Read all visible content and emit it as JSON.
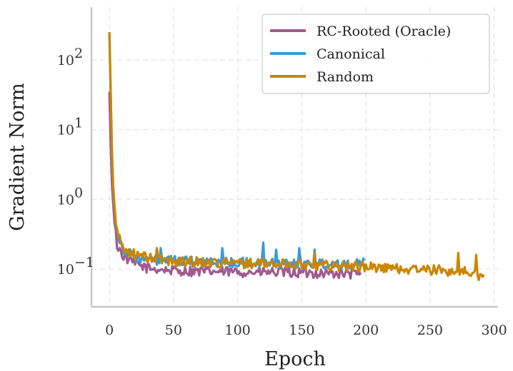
{
  "chart_data": {
    "type": "line",
    "title": "",
    "xlabel": "Epoch",
    "ylabel": "Gradient Norm",
    "yscale": "log",
    "xlim": [
      -14,
      303
    ],
    "ylim": [
      0.0288,
      570
    ],
    "xticks": [
      0,
      50,
      100,
      150,
      200,
      250,
      300
    ],
    "yticks": [
      {
        "value": 0.1,
        "base": "10",
        "exp": "−1"
      },
      {
        "value": 1,
        "base": "10",
        "exp": "0"
      },
      {
        "value": 10,
        "base": "10",
        "exp": "1"
      },
      {
        "value": 100,
        "base": "10",
        "exp": "2"
      }
    ],
    "grid": true,
    "legend_position": "top-right",
    "series": [
      {
        "name": "RC-Rooted (Oracle)",
        "color": "#a05a8f",
        "epochs": 196,
        "anchors": [
          [
            0,
            35
          ],
          [
            1,
            6
          ],
          [
            2,
            1.6
          ],
          [
            4,
            0.45
          ],
          [
            6,
            0.22
          ],
          [
            10,
            0.16
          ],
          [
            15,
            0.135
          ],
          [
            20,
            0.12
          ],
          [
            30,
            0.103
          ],
          [
            50,
            0.095
          ],
          [
            80,
            0.092
          ],
          [
            120,
            0.09
          ],
          [
            160,
            0.088
          ],
          [
            196,
            0.085
          ]
        ]
      },
      {
        "name": "Canonical",
        "color": "#3a9ad9",
        "epochs": 199,
        "anchors": [
          [
            0,
            240
          ],
          [
            1,
            35
          ],
          [
            2,
            4
          ],
          [
            3,
            1.2
          ],
          [
            5,
            0.45
          ],
          [
            8,
            0.25
          ],
          [
            12,
            0.18
          ],
          [
            20,
            0.15
          ],
          [
            30,
            0.135
          ],
          [
            50,
            0.13
          ],
          [
            80,
            0.125
          ],
          [
            120,
            0.122
          ],
          [
            160,
            0.12
          ],
          [
            199,
            0.12
          ]
        ],
        "spikes": [
          [
            40,
            0.2
          ],
          [
            88,
            0.2
          ],
          [
            120,
            0.24
          ],
          [
            130,
            0.19
          ],
          [
            148,
            0.2
          ],
          [
            160,
            0.19
          ]
        ]
      },
      {
        "name": "Random",
        "color": "#cc8500",
        "epochs": 292,
        "anchors": [
          [
            0,
            250
          ],
          [
            1,
            35
          ],
          [
            2,
            5
          ],
          [
            3,
            1.5
          ],
          [
            5,
            0.45
          ],
          [
            8,
            0.26
          ],
          [
            12,
            0.19
          ],
          [
            20,
            0.16
          ],
          [
            30,
            0.145
          ],
          [
            50,
            0.13
          ],
          [
            80,
            0.125
          ],
          [
            120,
            0.12
          ],
          [
            160,
            0.115
          ],
          [
            200,
            0.108
          ],
          [
            230,
            0.1
          ],
          [
            260,
            0.095
          ],
          [
            280,
            0.09
          ],
          [
            292,
            0.077
          ]
        ],
        "spikes": [
          [
            37,
            0.2
          ],
          [
            160,
            0.17
          ],
          [
            272,
            0.17
          ],
          [
            286,
            0.16
          ]
        ]
      }
    ]
  }
}
